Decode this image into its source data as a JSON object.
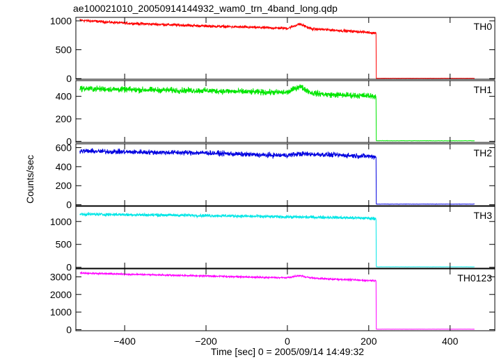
{
  "chart_data": {
    "type": "line",
    "title": "ae100021010_20050914144932_wam0_trn_4band_long.qdp",
    "xlabel": "Time [sec] 0 = 2005/09/14 14:49:32",
    "ylabel": "Counts/sec",
    "xlim": [
      -520,
      510
    ],
    "x_ticks": [
      -400,
      -200,
      0,
      200,
      400
    ],
    "x_tick_labels": [
      "−400",
      "−200",
      "0",
      "200",
      "400"
    ],
    "drop_time": 218,
    "end_time": 460,
    "series": [
      {
        "name": "TH0",
        "color": "#ff0000",
        "ylim": [
          -10,
          1060
        ],
        "y_ticks": [
          0,
          500,
          1000
        ],
        "y_tick_labels": [
          "0",
          "500",
          "1000"
        ],
        "keypoints": [
          [
            -510,
            1010
          ],
          [
            -400,
            960
          ],
          [
            -200,
            910
          ],
          [
            -50,
            880
          ],
          [
            0,
            870
          ],
          [
            30,
            945
          ],
          [
            60,
            860
          ],
          [
            100,
            845
          ],
          [
            200,
            800
          ],
          [
            215,
            790
          ]
        ],
        "noise": 20,
        "post_value": 6,
        "bump": {
          "center": 30,
          "width": 22,
          "height": 50
        }
      },
      {
        "name": "TH1",
        "color": "#00e600",
        "ylim": [
          -10,
          540
        ],
        "y_ticks": [
          0,
          200,
          400
        ],
        "y_tick_labels": [
          "0",
          "200",
          "400"
        ],
        "keypoints": [
          [
            -510,
            470
          ],
          [
            -400,
            460
          ],
          [
            -200,
            450
          ],
          [
            -50,
            435
          ],
          [
            0,
            435
          ],
          [
            30,
            490
          ],
          [
            60,
            430
          ],
          [
            100,
            415
          ],
          [
            200,
            405
          ],
          [
            215,
            400
          ]
        ],
        "noise": 22,
        "post_value": 5,
        "bump": {
          "center": 30,
          "width": 22,
          "height": 45
        }
      },
      {
        "name": "TH2",
        "color": "#0000e0",
        "ylim": [
          -10,
          640
        ],
        "y_ticks": [
          0,
          200,
          400,
          600
        ],
        "y_tick_labels": [
          "0",
          "200",
          "400",
          "600"
        ],
        "keypoints": [
          [
            -510,
            565
          ],
          [
            -400,
            555
          ],
          [
            -200,
            545
          ],
          [
            -50,
            520
          ],
          [
            0,
            520
          ],
          [
            30,
            535
          ],
          [
            100,
            525
          ],
          [
            200,
            510
          ],
          [
            215,
            505
          ]
        ],
        "noise": 22,
        "post_value": 6,
        "bump": {
          "center": 30,
          "width": 22,
          "height": 15
        }
      },
      {
        "name": "TH3",
        "color": "#00e6e6",
        "ylim": [
          -20,
          1330
        ],
        "y_ticks": [
          0,
          500,
          1000
        ],
        "y_tick_labels": [
          "0",
          "500",
          "1000"
        ],
        "keypoints": [
          [
            -510,
            1160
          ],
          [
            -400,
            1150
          ],
          [
            -200,
            1130
          ],
          [
            0,
            1100
          ],
          [
            100,
            1090
          ],
          [
            200,
            1070
          ],
          [
            215,
            1065
          ]
        ],
        "noise": 28,
        "post_value": 10,
        "bump": {
          "center": 30,
          "width": 22,
          "height": 0
        }
      },
      {
        "name": "TH0123",
        "color": "#ff00ff",
        "ylim": [
          -60,
          3450
        ],
        "y_ticks": [
          0,
          1000,
          2000,
          3000
        ],
        "y_tick_labels": [
          "0",
          "1000",
          "2000",
          "3000"
        ],
        "keypoints": [
          [
            -510,
            3220
          ],
          [
            -400,
            3150
          ],
          [
            -200,
            3050
          ],
          [
            -50,
            2960
          ],
          [
            0,
            2950
          ],
          [
            30,
            3070
          ],
          [
            60,
            2930
          ],
          [
            100,
            2880
          ],
          [
            200,
            2790
          ],
          [
            215,
            2780
          ]
        ],
        "noise": 40,
        "post_value": 25,
        "bump": {
          "center": 30,
          "width": 22,
          "height": 110
        }
      }
    ]
  }
}
